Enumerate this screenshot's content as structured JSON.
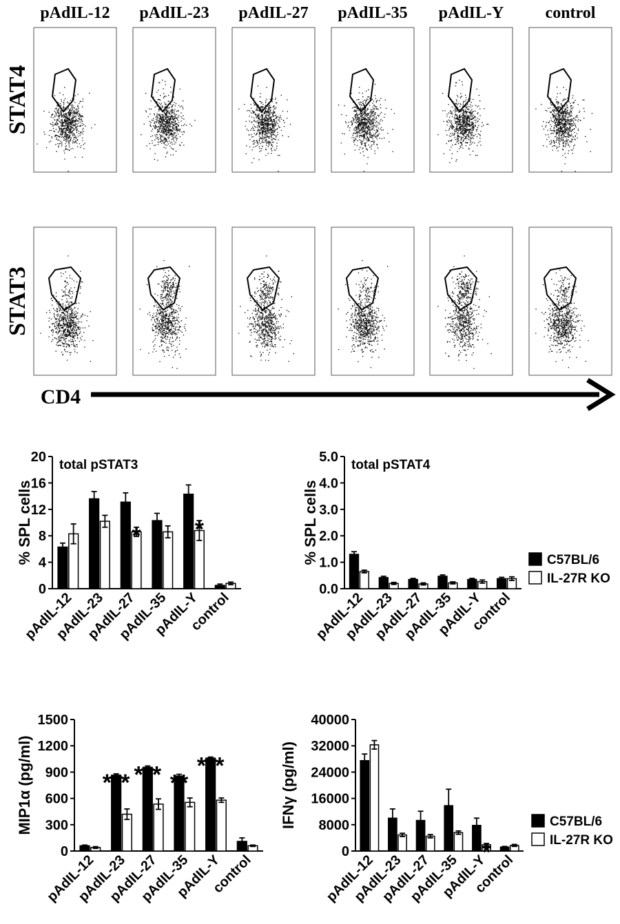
{
  "flow": {
    "column_labels": [
      "pAdIL-12",
      "pAdIL-23",
      "pAdIL-27",
      "pAdIL-35",
      "pAdIL-Y",
      "control"
    ],
    "row_labels": [
      "STAT4",
      "STAT3"
    ],
    "x_axis_label": "CD4"
  },
  "chart_data": [
    {
      "type": "bar",
      "title": "total pSTAT3",
      "ylabel": "% SPL cells",
      "xlabel": "",
      "categories": [
        "pAdIL-12",
        "pAdIL-23",
        "pAdIL-27",
        "pAdIL-35",
        "pAdIL-Y",
        "control"
      ],
      "ylim": [
        0,
        20
      ],
      "yticks": [
        "0",
        "4",
        "8",
        "12",
        "16",
        "20"
      ],
      "series": [
        {
          "name": "C57BL/6",
          "fill": "#000000",
          "values": [
            6.3,
            13.6,
            13.1,
            10.3,
            14.3,
            0.5
          ],
          "errors": [
            0.6,
            1.1,
            1.4,
            1.1,
            1.4,
            0.2
          ]
        },
        {
          "name": "IL-27R KO",
          "fill": "#ffffff",
          "values": [
            8.3,
            10.2,
            8.6,
            8.6,
            8.8,
            0.8
          ],
          "errors": [
            1.5,
            0.9,
            0.7,
            0.9,
            1.5,
            0.2
          ]
        }
      ],
      "annotations": [
        {
          "category": "pAdIL-27",
          "series": "IL-27R KO",
          "text": "*"
        },
        {
          "category": "pAdIL-Y",
          "series": "IL-27R KO",
          "text": "*"
        }
      ],
      "legend": "none",
      "grid": false
    },
    {
      "type": "bar",
      "title": "total pSTAT4",
      "ylabel": "% SPL cells",
      "xlabel": "",
      "categories": [
        "pAdIL-12",
        "pAdIL-23",
        "pAdIL-27",
        "pAdIL-35",
        "pAdIL-Y",
        "control"
      ],
      "ylim": [
        0,
        5
      ],
      "yticks": [
        "0.0",
        "1.0",
        "2.0",
        "3.0",
        "4.0",
        "5.0"
      ],
      "series": [
        {
          "name": "C57BL/6",
          "fill": "#000000",
          "values": [
            1.3,
            0.42,
            0.35,
            0.47,
            0.35,
            0.38
          ],
          "errors": [
            0.1,
            0.05,
            0.04,
            0.05,
            0.04,
            0.05
          ]
        },
        {
          "name": "IL-27R KO",
          "fill": "#ffffff",
          "values": [
            0.65,
            0.2,
            0.18,
            0.22,
            0.27,
            0.38
          ],
          "errors": [
            0.05,
            0.04,
            0.04,
            0.04,
            0.06,
            0.07
          ]
        }
      ],
      "annotations": [],
      "legend": "right",
      "grid": false
    },
    {
      "type": "bar",
      "title": "",
      "ylabel": "MIP1α (pg/ml)",
      "xlabel": "",
      "categories": [
        "pAdIL-12",
        "pAdIL-23",
        "pAdIL-27",
        "pAdIL-35",
        "pAdIL-Y",
        "control"
      ],
      "ylim": [
        0,
        1500
      ],
      "yticks": [
        "0",
        "300",
        "600",
        "900",
        "1200",
        "1500"
      ],
      "series": [
        {
          "name": "C57BL/6",
          "fill": "#000000",
          "values": [
            60,
            865,
            955,
            855,
            1060,
            110
          ],
          "errors": [
            8,
            15,
            15,
            20,
            12,
            40
          ]
        },
        {
          "name": "IL-27R KO",
          "fill": "#ffffff",
          "values": [
            40,
            420,
            535,
            555,
            580,
            60
          ],
          "errors": [
            10,
            60,
            60,
            50,
            25,
            8
          ]
        }
      ],
      "annotations": [
        {
          "category": "pAdIL-23",
          "series": "C57BL/6",
          "text": "***"
        },
        {
          "category": "pAdIL-27",
          "series": "C57BL/6",
          "text": "***"
        },
        {
          "category": "pAdIL-35",
          "series": "C57BL/6",
          "text": "**"
        },
        {
          "category": "pAdIL-Y",
          "series": "C57BL/6",
          "text": "***"
        }
      ],
      "legend": "none",
      "grid": false
    },
    {
      "type": "bar",
      "title": "",
      "ylabel": "IFNγ (pg/ml)",
      "xlabel": "",
      "categories": [
        "pAdIL-12",
        "pAdIL-23",
        "pAdIL-27",
        "pAdIL-35",
        "pAdIL-Y",
        "control"
      ],
      "ylim": [
        0,
        40000
      ],
      "yticks": [
        "0",
        "8000",
        "16000",
        "24000",
        "32000",
        "40000"
      ],
      "series": [
        {
          "name": "C57BL/6",
          "fill": "#000000",
          "values": [
            27500,
            10000,
            9300,
            13800,
            7800,
            1200
          ],
          "errors": [
            2000,
            2800,
            2800,
            5000,
            2200,
            200
          ]
        },
        {
          "name": "IL-27R KO",
          "fill": "#ffffff",
          "values": [
            32300,
            4900,
            4500,
            5600,
            1900,
            1700
          ],
          "errors": [
            1300,
            500,
            500,
            500,
            400,
            300
          ]
        }
      ],
      "annotations": [
        {
          "category": "pAdIL-Y",
          "series": "IL-27R KO",
          "text": "*"
        }
      ],
      "legend": "right",
      "grid": false
    }
  ]
}
